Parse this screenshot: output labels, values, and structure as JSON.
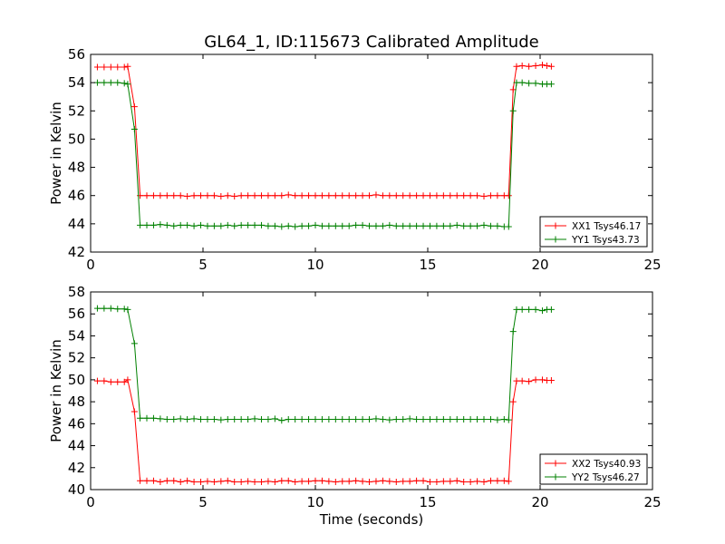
{
  "chart_data": {
    "type": "line",
    "title": "GL64_1, ID:115673 Calibrated Amplitude",
    "xlabel": "Time (seconds)",
    "x_ticks": [
      "0",
      "5",
      "10",
      "15",
      "20",
      "25"
    ],
    "colors": {
      "red": "#ff0000",
      "green": "#008000"
    },
    "grid": false,
    "legend_position": "lower-right",
    "panels": [
      {
        "ylabel": "Power in Kelvin",
        "xlim": [
          0,
          25
        ],
        "ylim": [
          42,
          56
        ],
        "y_ticks": [
          "42",
          "44",
          "46",
          "48",
          "50",
          "52",
          "54",
          "56"
        ],
        "series": [
          {
            "name": "XX1 Tsys46.17",
            "color": "#ff0000",
            "x": [
              0.3,
              0.6,
              0.9,
              1.2,
              1.5,
              1.65,
              1.95,
              2.2,
              2.5,
              2.8,
              3.1,
              3.4,
              3.7,
              4.0,
              4.3,
              4.6,
              4.9,
              5.2,
              5.5,
              5.8,
              6.1,
              6.4,
              6.7,
              7.0,
              7.3,
              7.6,
              7.9,
              8.2,
              8.5,
              8.8,
              9.1,
              9.4,
              9.7,
              10.0,
              10.3,
              10.6,
              10.9,
              11.2,
              11.5,
              11.8,
              12.1,
              12.4,
              12.7,
              13.0,
              13.3,
              13.6,
              13.9,
              14.2,
              14.5,
              14.8,
              15.1,
              15.4,
              15.7,
              16.0,
              16.3,
              16.6,
              16.9,
              17.2,
              17.5,
              17.8,
              18.1,
              18.4,
              18.6,
              18.8,
              18.95,
              19.2,
              19.5,
              19.8,
              20.1,
              20.3,
              20.5
            ],
            "y": [
              55.1,
              55.1,
              55.1,
              55.1,
              55.1,
              55.15,
              52.3,
              46.0,
              46.0,
              46.0,
              46.0,
              46.0,
              46.0,
              46.0,
              45.95,
              46.0,
              46.0,
              46.0,
              46.0,
              45.95,
              46.0,
              45.95,
              46.0,
              46.0,
              46.0,
              46.0,
              46.0,
              46.0,
              46.0,
              46.05,
              46.0,
              46.0,
              46.0,
              46.0,
              46.0,
              46.0,
              46.0,
              46.0,
              46.0,
              46.0,
              46.0,
              46.0,
              46.05,
              46.0,
              46.0,
              46.0,
              46.0,
              46.0,
              46.0,
              46.0,
              46.0,
              46.0,
              46.0,
              46.0,
              46.0,
              46.0,
              46.0,
              46.0,
              45.95,
              46.0,
              46.0,
              46.0,
              46.0,
              53.5,
              55.15,
              55.2,
              55.15,
              55.2,
              55.25,
              55.2,
              55.15
            ]
          },
          {
            "name": "YY1 Tsys43.73",
            "color": "#008000",
            "x": [
              0.3,
              0.6,
              0.9,
              1.2,
              1.5,
              1.65,
              1.95,
              2.2,
              2.5,
              2.8,
              3.1,
              3.4,
              3.7,
              4.0,
              4.3,
              4.6,
              4.9,
              5.2,
              5.5,
              5.8,
              6.1,
              6.4,
              6.7,
              7.0,
              7.3,
              7.6,
              7.9,
              8.2,
              8.5,
              8.8,
              9.1,
              9.4,
              9.7,
              10.0,
              10.3,
              10.6,
              10.9,
              11.2,
              11.5,
              11.8,
              12.1,
              12.4,
              12.7,
              13.0,
              13.3,
              13.6,
              13.9,
              14.2,
              14.5,
              14.8,
              15.1,
              15.4,
              15.7,
              16.0,
              16.3,
              16.6,
              16.9,
              17.2,
              17.5,
              17.8,
              18.1,
              18.4,
              18.6,
              18.8,
              18.95,
              19.2,
              19.5,
              19.8,
              20.1,
              20.3,
              20.5
            ],
            "y": [
              54.0,
              54.0,
              54.0,
              54.0,
              53.95,
              53.9,
              50.7,
              43.9,
              43.9,
              43.9,
              43.95,
              43.9,
              43.85,
              43.9,
              43.9,
              43.85,
              43.9,
              43.85,
              43.85,
              43.85,
              43.9,
              43.85,
              43.9,
              43.9,
              43.9,
              43.9,
              43.85,
              43.85,
              43.8,
              43.85,
              43.8,
              43.85,
              43.85,
              43.9,
              43.85,
              43.85,
              43.85,
              43.85,
              43.85,
              43.9,
              43.9,
              43.85,
              43.85,
              43.85,
              43.9,
              43.85,
              43.85,
              43.85,
              43.85,
              43.85,
              43.85,
              43.85,
              43.85,
              43.85,
              43.9,
              43.85,
              43.85,
              43.85,
              43.9,
              43.85,
              43.85,
              43.8,
              43.8,
              52.0,
              54.0,
              54.0,
              53.95,
              53.95,
              53.9,
              53.9,
              53.9
            ]
          }
        ]
      },
      {
        "ylabel": "Power in Kelvin",
        "xlim": [
          0,
          25
        ],
        "ylim": [
          40,
          58
        ],
        "y_ticks": [
          "40",
          "42",
          "44",
          "46",
          "48",
          "50",
          "52",
          "54",
          "56",
          "58"
        ],
        "series": [
          {
            "name": "XX2 Tsys40.93",
            "color": "#ff0000",
            "x": [
              0.3,
              0.6,
              0.9,
              1.2,
              1.5,
              1.65,
              1.95,
              2.2,
              2.5,
              2.8,
              3.1,
              3.4,
              3.7,
              4.0,
              4.3,
              4.6,
              4.9,
              5.2,
              5.5,
              5.8,
              6.1,
              6.4,
              6.7,
              7.0,
              7.3,
              7.6,
              7.9,
              8.2,
              8.5,
              8.8,
              9.1,
              9.4,
              9.7,
              10.0,
              10.3,
              10.6,
              10.9,
              11.2,
              11.5,
              11.8,
              12.1,
              12.4,
              12.7,
              13.0,
              13.3,
              13.6,
              13.9,
              14.2,
              14.5,
              14.8,
              15.1,
              15.4,
              15.7,
              16.0,
              16.3,
              16.6,
              16.9,
              17.2,
              17.5,
              17.8,
              18.1,
              18.4,
              18.6,
              18.8,
              18.95,
              19.2,
              19.5,
              19.8,
              20.1,
              20.3,
              20.5
            ],
            "y": [
              49.9,
              49.9,
              49.8,
              49.8,
              49.8,
              50.0,
              47.1,
              40.8,
              40.8,
              40.8,
              40.7,
              40.8,
              40.8,
              40.7,
              40.8,
              40.7,
              40.7,
              40.75,
              40.7,
              40.75,
              40.8,
              40.7,
              40.7,
              40.75,
              40.7,
              40.7,
              40.75,
              40.7,
              40.8,
              40.8,
              40.7,
              40.75,
              40.75,
              40.8,
              40.8,
              40.75,
              40.7,
              40.75,
              40.75,
              40.8,
              40.75,
              40.7,
              40.75,
              40.8,
              40.75,
              40.7,
              40.75,
              40.75,
              40.8,
              40.8,
              40.7,
              40.7,
              40.75,
              40.75,
              40.8,
              40.7,
              40.7,
              40.75,
              40.7,
              40.8,
              40.8,
              40.8,
              40.75,
              48.0,
              49.9,
              49.9,
              49.85,
              50.0,
              50.0,
              49.95,
              49.95
            ]
          },
          {
            "name": "YY2 Tsys46.27",
            "color": "#008000",
            "x": [
              0.3,
              0.6,
              0.9,
              1.2,
              1.5,
              1.65,
              1.95,
              2.2,
              2.5,
              2.8,
              3.1,
              3.4,
              3.7,
              4.0,
              4.3,
              4.6,
              4.9,
              5.2,
              5.5,
              5.8,
              6.1,
              6.4,
              6.7,
              7.0,
              7.3,
              7.6,
              7.9,
              8.2,
              8.5,
              8.8,
              9.1,
              9.4,
              9.7,
              10.0,
              10.3,
              10.6,
              10.9,
              11.2,
              11.5,
              11.8,
              12.1,
              12.4,
              12.7,
              13.0,
              13.3,
              13.6,
              13.9,
              14.2,
              14.5,
              14.8,
              15.1,
              15.4,
              15.7,
              16.0,
              16.3,
              16.6,
              16.9,
              17.2,
              17.5,
              17.8,
              18.1,
              18.4,
              18.6,
              18.8,
              18.95,
              19.2,
              19.5,
              19.8,
              20.1,
              20.3,
              20.5
            ],
            "y": [
              56.5,
              56.5,
              56.5,
              56.45,
              56.45,
              56.4,
              53.3,
              46.5,
              46.5,
              46.5,
              46.45,
              46.4,
              46.4,
              46.45,
              46.4,
              46.45,
              46.4,
              46.4,
              46.4,
              46.35,
              46.4,
              46.4,
              46.4,
              46.4,
              46.45,
              46.4,
              46.4,
              46.45,
              46.3,
              46.4,
              46.4,
              46.4,
              46.4,
              46.4,
              46.4,
              46.4,
              46.4,
              46.4,
              46.4,
              46.4,
              46.4,
              46.4,
              46.45,
              46.4,
              46.35,
              46.4,
              46.4,
              46.45,
              46.4,
              46.4,
              46.4,
              46.4,
              46.4,
              46.4,
              46.4,
              46.4,
              46.4,
              46.4,
              46.4,
              46.4,
              46.35,
              46.4,
              46.35,
              54.4,
              56.4,
              56.4,
              56.4,
              56.4,
              56.3,
              56.4,
              56.4
            ]
          }
        ]
      }
    ]
  }
}
